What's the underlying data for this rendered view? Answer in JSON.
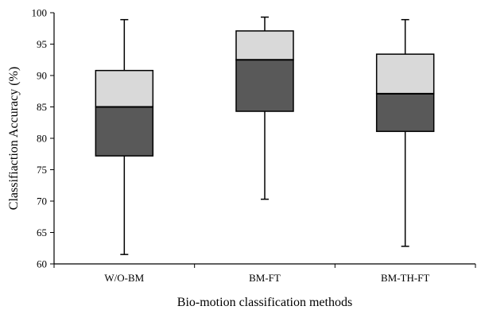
{
  "chart_data": {
    "type": "boxplot",
    "xlabel": "Bio-motion classification methods",
    "ylabel": "Classifiaction Accuracy (%)",
    "ylim": [
      60,
      100
    ],
    "yticks": [
      60,
      65,
      70,
      75,
      80,
      85,
      90,
      95,
      100
    ],
    "categories": [
      "W/O-BM",
      "BM-FT",
      "BM-TH-FT"
    ],
    "boxes": [
      {
        "category": "W/O-BM",
        "min": 61.5,
        "q1": 77.2,
        "median": 85.0,
        "q3": 90.8,
        "max": 98.9
      },
      {
        "category": "BM-FT",
        "min": 70.3,
        "q1": 84.3,
        "median": 92.5,
        "q3": 97.1,
        "max": 99.3
      },
      {
        "category": "BM-TH-FT",
        "min": 62.8,
        "q1": 81.1,
        "median": 87.1,
        "q3": 93.4,
        "max": 98.9
      }
    ],
    "colors": {
      "lower_box": "#595959",
      "upper_box": "#d9d9d9",
      "stroke": "#000000"
    },
    "grid": false,
    "legend": "none"
  }
}
